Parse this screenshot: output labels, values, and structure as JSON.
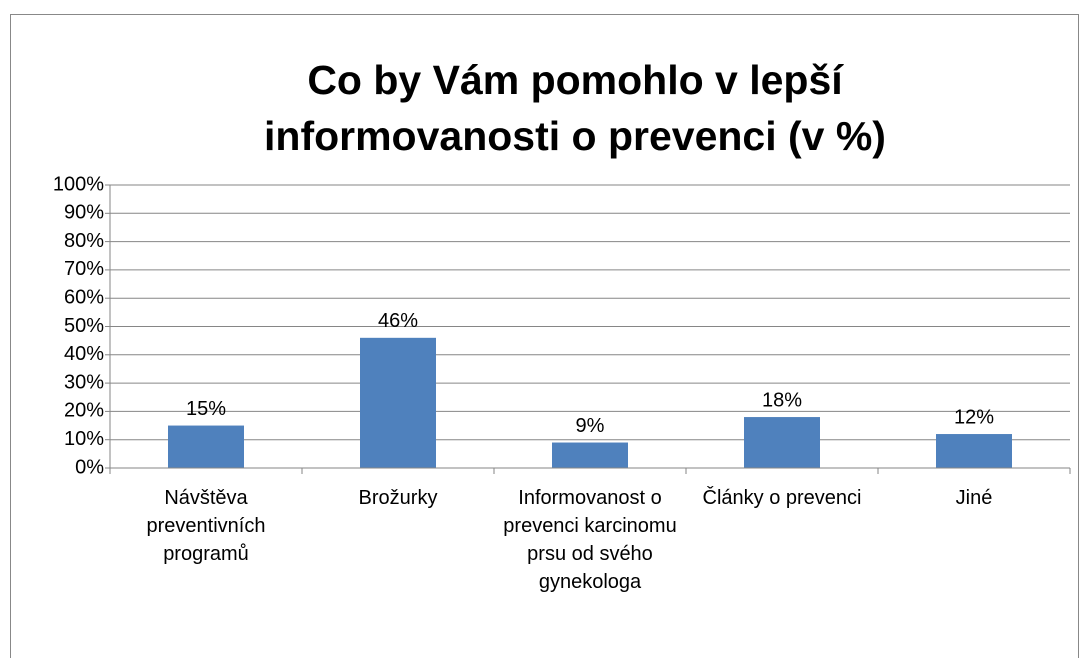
{
  "chart_data": {
    "type": "bar",
    "title": "Co by Vám pomohlo v lepší informovanosti o prevenci (v %)",
    "categories": [
      "Návštěva preventivních programů",
      "Brožurky",
      "Informovanost o prevenci karcinomu prsu od svého gynekologa",
      "Články o prevenci",
      "Jiné"
    ],
    "values": [
      15,
      46,
      9,
      18,
      12
    ],
    "value_labels": [
      "15%",
      "46%",
      "9%",
      "18%",
      "12%"
    ],
    "color": "#4f81bd",
    "ylim": [
      0,
      100
    ],
    "yticks": [
      {
        "value": 0,
        "label": "0%"
      },
      {
        "value": 10,
        "label": "10%"
      },
      {
        "value": 20,
        "label": "20%"
      },
      {
        "value": 30,
        "label": "30%"
      },
      {
        "value": 40,
        "label": "40%"
      },
      {
        "value": 50,
        "label": "50%"
      },
      {
        "value": 60,
        "label": "60%"
      },
      {
        "value": 70,
        "label": "70%"
      },
      {
        "value": 80,
        "label": "80%"
      },
      {
        "value": 90,
        "label": "90%"
      },
      {
        "value": 100,
        "label": "100%"
      }
    ],
    "grid": true
  }
}
